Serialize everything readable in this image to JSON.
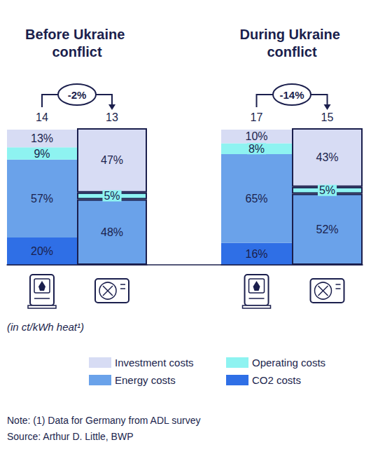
{
  "chart_data": [
    {
      "type": "bar",
      "stacked": true,
      "data_labels": true,
      "tick_labels": false,
      "legend": "bottom",
      "title": "Before Ukraine conflict",
      "categories": [
        null,
        null
      ],
      "ylim": [
        0,
        100
      ],
      "series": [
        {
          "name": "Investment costs",
          "color": "#d7dcf4",
          "values": [
            13,
            47
          ],
          "value_labels": [
            "13%",
            "47%"
          ]
        },
        {
          "name": "Operating costs",
          "color": "#8ef3f1",
          "values": [
            9,
            5
          ],
          "value_labels": [
            "9%",
            "5%"
          ]
        },
        {
          "name": "Energy costs",
          "color": "#6aa2ea",
          "values": [
            57,
            48
          ],
          "value_labels": [
            "57%",
            "48%"
          ]
        },
        {
          "name": "CO2 costs",
          "color": "#2f6fe6",
          "values": [
            20,
            null
          ],
          "value_labels": [
            "20%",
            null
          ]
        }
      ],
      "totals": [
        14,
        13
      ],
      "change": "-2%"
    },
    {
      "type": "bar",
      "stacked": true,
      "data_labels": true,
      "tick_labels": false,
      "legend": "bottom",
      "title": "During Ukraine conflict",
      "categories": [
        null,
        null
      ],
      "ylim": [
        0,
        100
      ],
      "series": [
        {
          "name": "Investment costs",
          "color": "#d7dcf4",
          "values": [
            10,
            43
          ],
          "value_labels": [
            "10%",
            "43%"
          ]
        },
        {
          "name": "Operating costs",
          "color": "#8ef3f1",
          "values": [
            8,
            5
          ],
          "value_labels": [
            "8%",
            "5%"
          ]
        },
        {
          "name": "Energy costs",
          "color": "#6aa2ea",
          "values": [
            65,
            52
          ],
          "value_labels": [
            "65%",
            "52%"
          ]
        },
        {
          "name": "CO2 costs",
          "color": "#2f6fe6",
          "values": [
            16,
            null
          ],
          "value_labels": [
            "16%",
            null
          ]
        }
      ],
      "totals": [
        17,
        15
      ],
      "change": "-14%"
    }
  ],
  "unit": "(in ct/kWh heat¹)",
  "footnotes": [
    "Note: (1) Data for Germany from ADL survey",
    "Source: Arthur D. Little, BWP"
  ]
}
